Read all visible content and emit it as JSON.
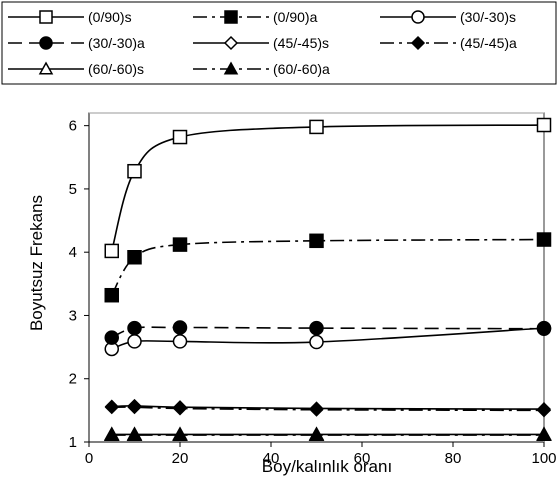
{
  "chart_data": {
    "type": "line",
    "xlabel": "Boy/kalınlık oranı",
    "ylabel": "Boyutsuz Frekans",
    "xlim": [
      0,
      100
    ],
    "ylim": [
      1,
      6.2
    ],
    "xticks": [
      0,
      20,
      40,
      60,
      80,
      100
    ],
    "yticks": [
      1,
      2,
      3,
      4,
      5,
      6
    ],
    "grid": false,
    "legend_position": "top",
    "series": [
      {
        "name": "(0/90)s",
        "style": "solid",
        "marker": "square-open",
        "x": [
          5,
          10,
          20,
          50,
          100
        ],
        "y": [
          4.02,
          5.28,
          5.82,
          5.98,
          6.01
        ]
      },
      {
        "name": "(0/90)a",
        "style": "dashdot",
        "marker": "square-filled",
        "x": [
          5,
          10,
          20,
          50,
          100
        ],
        "y": [
          3.32,
          3.92,
          4.12,
          4.18,
          4.2
        ]
      },
      {
        "name": "(30/-30)s",
        "style": "solid",
        "marker": "circle-open",
        "x": [
          5,
          10,
          20,
          50,
          100
        ],
        "y": [
          2.47,
          2.59,
          2.59,
          2.58,
          2.8
        ]
      },
      {
        "name": "(30/-30)a",
        "style": "dashed",
        "marker": "circle-filled",
        "x": [
          5,
          10,
          20,
          50,
          100
        ],
        "y": [
          2.65,
          2.8,
          2.81,
          2.8,
          2.79
        ]
      },
      {
        "name": "(45/-45)s",
        "style": "solid",
        "marker": "diamond-open",
        "x": [
          5,
          10,
          20,
          50,
          100
        ],
        "y": [
          1.56,
          1.57,
          1.55,
          1.53,
          1.52
        ]
      },
      {
        "name": "(45/-45)a",
        "style": "dashdot",
        "marker": "diamond-filled",
        "x": [
          5,
          10,
          20,
          50,
          100
        ],
        "y": [
          1.55,
          1.55,
          1.53,
          1.51,
          1.5
        ]
      },
      {
        "name": "(60/-60)s",
        "style": "solid",
        "marker": "triangle-open",
        "x": [
          5,
          10,
          20,
          50,
          100
        ],
        "y": [
          1.12,
          1.12,
          1.12,
          1.12,
          1.12
        ]
      },
      {
        "name": "(60/-60)a",
        "style": "dashdot",
        "marker": "triangle-filled",
        "x": [
          5,
          10,
          20,
          50,
          100
        ],
        "y": [
          1.11,
          1.11,
          1.11,
          1.11,
          1.11
        ]
      }
    ]
  }
}
